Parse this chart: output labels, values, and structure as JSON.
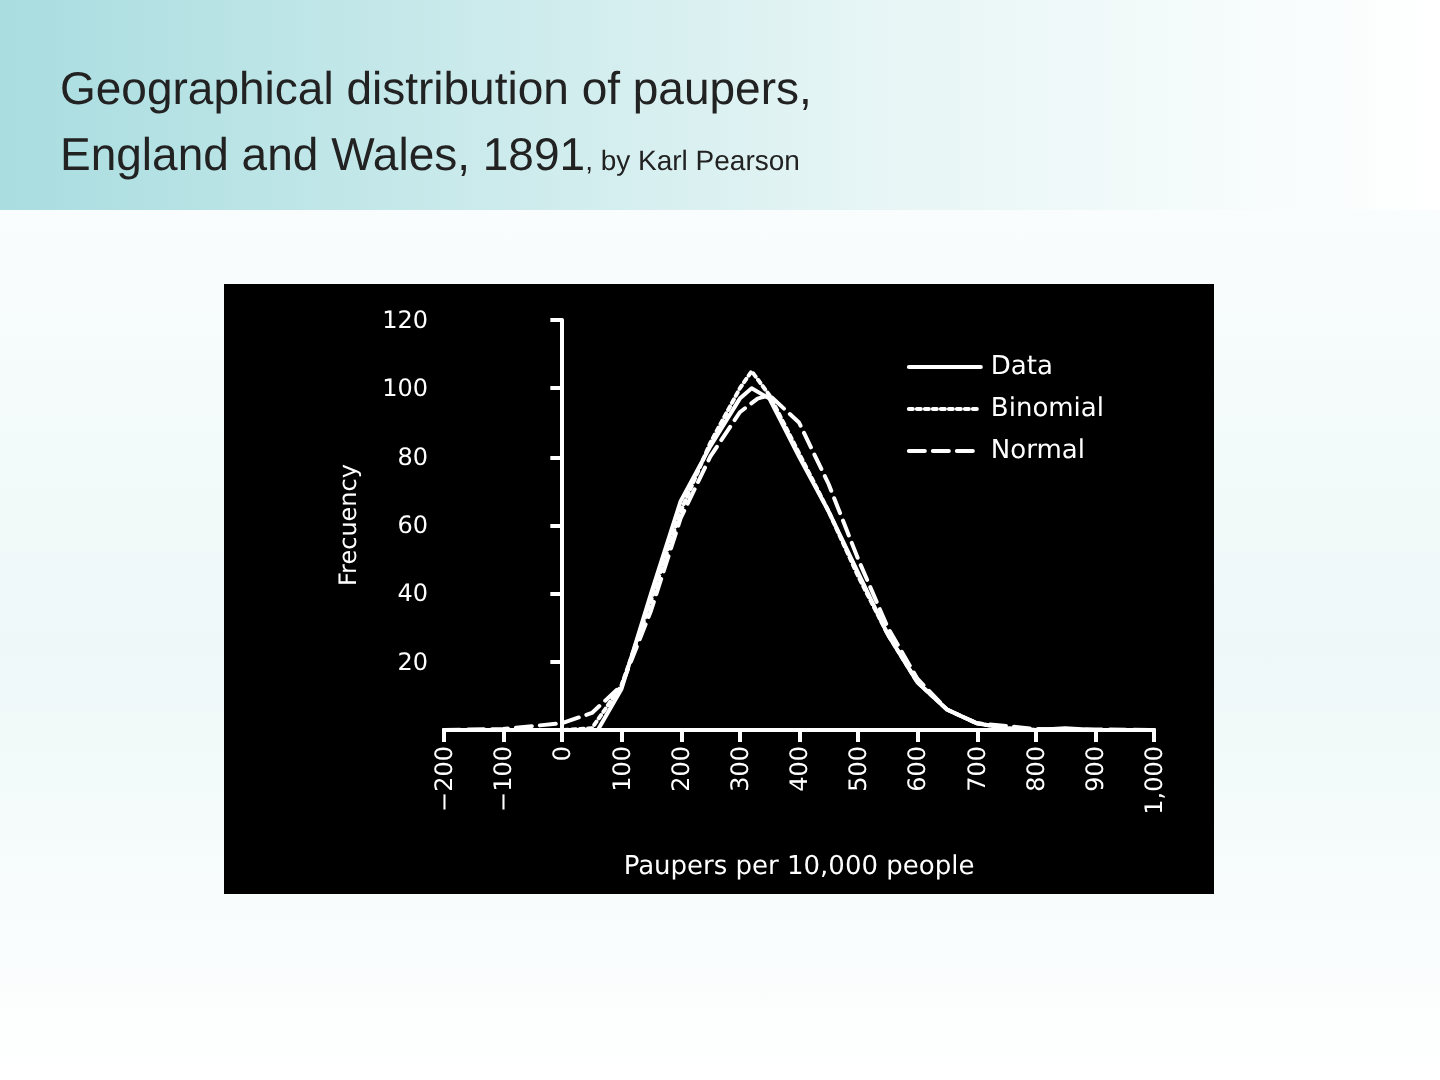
{
  "chart_data": {
    "type": "line",
    "title": "Geographical distribution of paupers, England and Wales, 1891",
    "subtitle": ", by Karl Pearson",
    "xlabel": "Paupers per 10,000 people",
    "ylabel": "Frecuency",
    "xlim": [
      -200,
      1000
    ],
    "xticks": [
      {
        "value": -200,
        "label": "−200"
      },
      {
        "value": -100,
        "label": "−100"
      },
      0,
      100,
      200,
      300,
      400,
      500,
      600,
      700,
      800,
      900,
      {
        "value": 1000,
        "label": "1,000"
      }
    ],
    "ylim": [
      0,
      120
    ],
    "yticks": [
      {
        "value": 0,
        "label": null
      },
      20,
      40,
      60,
      80,
      100,
      120
    ],
    "legend": "top right",
    "marker": "none",
    "series": [
      {
        "name": "Data",
        "color": "#ffffff",
        "line_style": "solid",
        "x": [
          -200,
          -100,
          0,
          60,
          100,
          150,
          200,
          250,
          300,
          320,
          350,
          400,
          450,
          500,
          550,
          600,
          650,
          700,
          750,
          800,
          850,
          900,
          1000
        ],
        "values": [
          0,
          0,
          0,
          0,
          12,
          40,
          67,
          83,
          97,
          100,
          97,
          80,
          64,
          46,
          28,
          14,
          6,
          2,
          0.5,
          0,
          0.5,
          0,
          0
        ]
      },
      {
        "name": "Binomial",
        "color": "#ffffff",
        "line_style": "dotted",
        "x": [
          -200,
          -100,
          0,
          50,
          100,
          150,
          200,
          250,
          300,
          320,
          350,
          400,
          450,
          500,
          550,
          600,
          650,
          700,
          750,
          800,
          900,
          1000
        ],
        "values": [
          0,
          0,
          0,
          0.5,
          13,
          38,
          64,
          84,
          100,
          105,
          98,
          81,
          64,
          45,
          28,
          14,
          6,
          2,
          0.5,
          0,
          0,
          0
        ]
      },
      {
        "name": "Normal",
        "color": "#ffffff",
        "line_style": "dashed",
        "x": [
          -200,
          -100,
          0,
          50,
          100,
          150,
          200,
          250,
          300,
          330,
          350,
          400,
          450,
          500,
          550,
          600,
          650,
          700,
          800,
          1000
        ],
        "values": [
          0,
          0.3,
          2,
          5,
          13,
          35,
          62,
          80,
          93,
          97,
          98,
          90,
          72,
          50,
          30,
          15,
          6,
          2,
          0.3,
          0
        ]
      }
    ]
  }
}
